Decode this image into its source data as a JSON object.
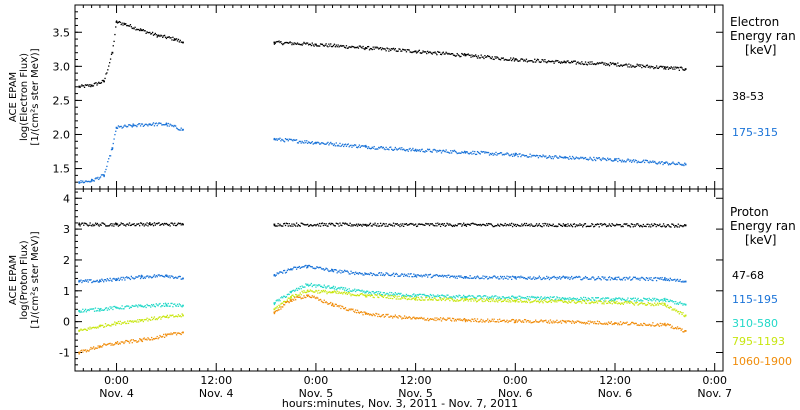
{
  "chart_data": {
    "type": "scatter",
    "xlabel": "hours:minutes, Nov.  3, 2011 - Nov.  7, 2011",
    "x_range_hours": [
      -5,
      73
    ],
    "x_ticks": [
      {
        "hours": 0,
        "time": "0:00",
        "date": "Nov. 4"
      },
      {
        "hours": 12,
        "time": "12:00",
        "date": "Nov. 4"
      },
      {
        "hours": 24,
        "time": "0:00",
        "date": "Nov. 5"
      },
      {
        "hours": 36,
        "time": "12:00",
        "date": "Nov. 5"
      },
      {
        "hours": 48,
        "time": "0:00",
        "date": "Nov. 6"
      },
      {
        "hours": 60,
        "time": "12:00",
        "date": "Nov. 6"
      },
      {
        "hours": 72,
        "time": "0:00",
        "date": "Nov. 7"
      }
    ],
    "panels": [
      {
        "id": "electron",
        "ylabel": [
          "ACE EPAM",
          "log(Electron Flux)",
          "[1/(cm²s ster MeV)]"
        ],
        "ylim": [
          1.2,
          3.9
        ],
        "yticks": [
          1.5,
          2.0,
          2.5,
          3.0,
          3.5
        ],
        "legend_title": [
          "Electron",
          "Energy ran",
          "[keV]"
        ],
        "series": [
          {
            "name": "38-53",
            "color": "#000000",
            "x": [
              -4.5,
              -3,
              -1.5,
              -0.5,
              0,
              1,
              3,
              5,
              7,
              8,
              19,
              24,
              30,
              36,
              42,
              48,
              54,
              60,
              66,
              68.5
            ],
            "y": [
              2.7,
              2.72,
              2.78,
              3.2,
              3.65,
              3.62,
              3.53,
              3.45,
              3.4,
              3.35,
              3.35,
              3.32,
              3.27,
              3.22,
              3.16,
              3.1,
              3.06,
              3.03,
              2.98,
              2.96
            ]
          },
          {
            "name": "175-315",
            "color": "#1a73d8",
            "x": [
              -4.5,
              -3,
              -1.5,
              -0.5,
              0,
              2,
              4,
              6,
              8,
              19,
              24,
              30,
              36,
              42,
              48,
              54,
              60,
              66,
              68.5
            ],
            "y": [
              1.3,
              1.32,
              1.4,
              1.8,
              2.1,
              2.13,
              2.15,
              2.15,
              2.07,
              1.93,
              1.88,
              1.82,
              1.77,
              1.74,
              1.7,
              1.66,
              1.63,
              1.58,
              1.56
            ]
          }
        ]
      },
      {
        "id": "proton",
        "ylabel": [
          "ACE EPAM",
          "log(Proton Flux)",
          "[1/(cm²s ster MeV)]"
        ],
        "ylim": [
          -1.6,
          4.3
        ],
        "yticks": [
          -1,
          0,
          1,
          2,
          3,
          4
        ],
        "legend_title": [
          "Proton",
          "Energy ran",
          "[keV]"
        ],
        "series": [
          {
            "name": "47-68",
            "color": "#000000",
            "x": [
              -4.5,
              0,
              4,
              8,
              19,
              30,
              42,
              54,
              68.5
            ],
            "y": [
              3.15,
              3.15,
              3.16,
              3.15,
              3.15,
              3.14,
              3.14,
              3.13,
              3.12
            ]
          },
          {
            "name": "115-195",
            "color": "#1a73d8",
            "x": [
              -4.5,
              -2,
              0,
              3,
              6,
              8,
              19,
              21,
              23,
              26,
              30,
              36,
              42,
              48,
              54,
              60,
              66,
              68.5
            ],
            "y": [
              1.3,
              1.32,
              1.38,
              1.45,
              1.5,
              1.4,
              1.5,
              1.7,
              1.8,
              1.65,
              1.55,
              1.5,
              1.45,
              1.42,
              1.42,
              1.4,
              1.38,
              1.3
            ]
          },
          {
            "name": "310-580",
            "color": "#22d8c8",
            "x": [
              -4.5,
              -2,
              0,
              3,
              6,
              8,
              19,
              21,
              23,
              26,
              30,
              36,
              42,
              48,
              54,
              60,
              66,
              68.5
            ],
            "y": [
              0.35,
              0.4,
              0.45,
              0.5,
              0.55,
              0.52,
              0.6,
              0.95,
              1.2,
              1.1,
              0.95,
              0.85,
              0.8,
              0.78,
              0.75,
              0.72,
              0.7,
              0.55
            ]
          },
          {
            "name": "795-1193",
            "color": "#c8e610",
            "x": [
              -4.5,
              -2,
              0,
              3,
              6,
              8,
              19,
              21,
              23,
              26,
              30,
              36,
              42,
              48,
              54,
              60,
              66,
              68.5
            ],
            "y": [
              -0.3,
              -0.15,
              -0.05,
              0.05,
              0.15,
              0.2,
              0.4,
              0.8,
              1.0,
              0.95,
              0.85,
              0.75,
              0.7,
              0.68,
              0.65,
              0.62,
              0.55,
              0.2
            ]
          },
          {
            "name": "1060-1900",
            "color": "#f08c0a",
            "x": [
              -4.5,
              -2,
              0,
              3,
              6,
              8,
              19,
              21,
              23,
              26,
              30,
              36,
              42,
              48,
              54,
              60,
              66,
              68.5
            ],
            "y": [
              -1.0,
              -0.8,
              -0.7,
              -0.6,
              -0.45,
              -0.35,
              0.3,
              0.7,
              0.85,
              0.55,
              0.25,
              0.1,
              0.05,
              0.02,
              0.0,
              -0.05,
              -0.1,
              -0.3
            ]
          }
        ]
      }
    ]
  }
}
